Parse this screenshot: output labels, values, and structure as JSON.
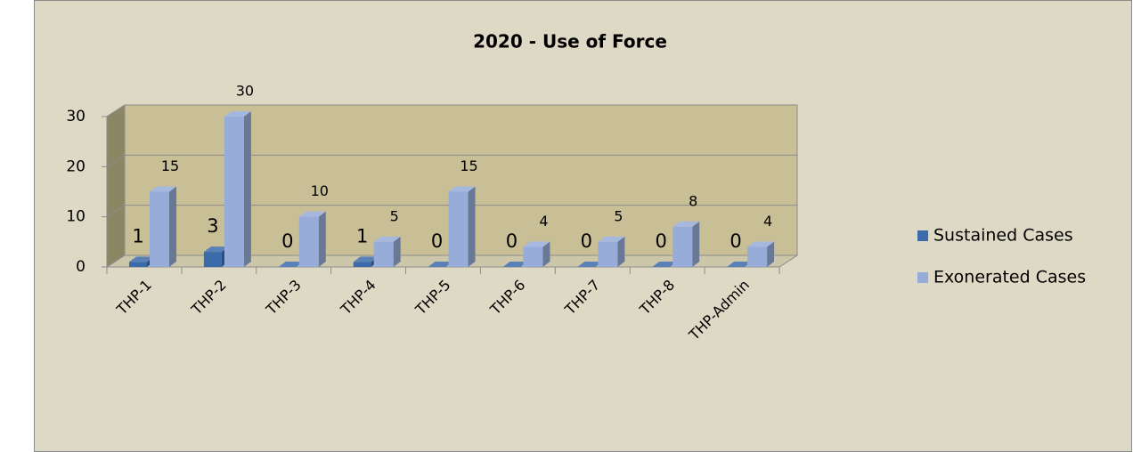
{
  "chart_data": {
    "type": "bar3d",
    "title": "2020 - Use of Force",
    "categories": [
      "THP-1",
      "THP-2",
      "THP-3",
      "THP-4",
      "THP-5",
      "THP-6",
      "THP-7",
      "THP-8",
      "THP-Admin"
    ],
    "series": [
      {
        "name": "Sustained Cases",
        "color": "#3c6bab",
        "values": [
          1,
          3,
          0,
          1,
          0,
          0,
          0,
          0,
          0
        ]
      },
      {
        "name": "Exonerated Cases",
        "color": "#98acd9",
        "values": [
          15,
          30,
          10,
          5,
          15,
          4,
          5,
          8,
          4
        ]
      }
    ],
    "ylim": [
      0,
      30
    ],
    "yticks": [
      0,
      10,
      20,
      30
    ],
    "grid": true,
    "legend": "right"
  }
}
